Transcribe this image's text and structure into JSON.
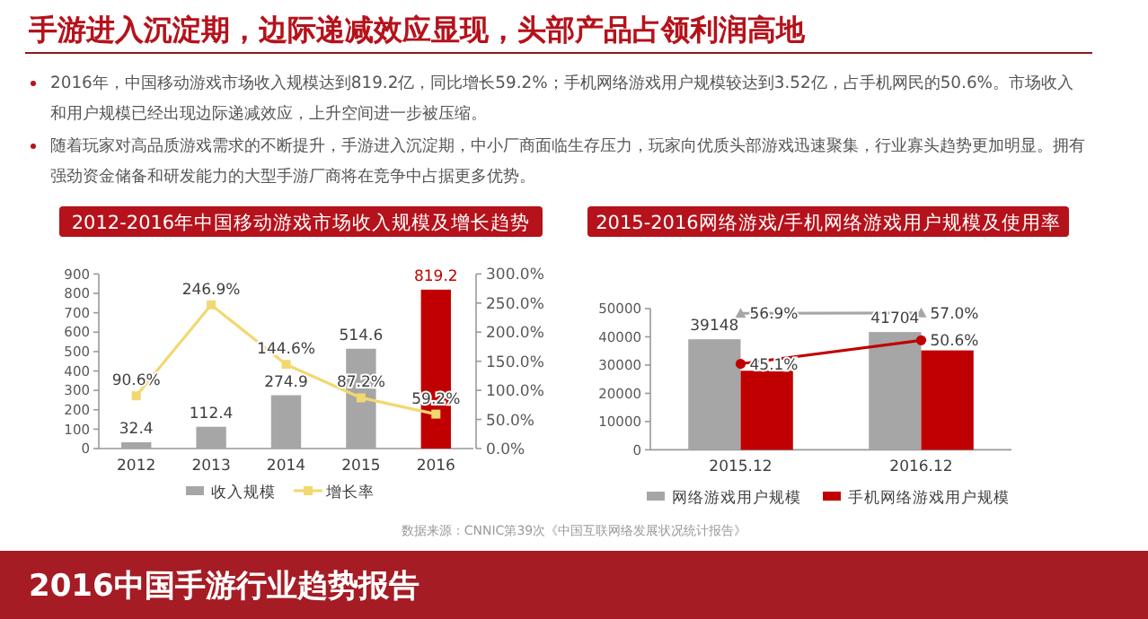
{
  "chart_data": [
    {
      "type": "other",
      "title": "手游进入沉淀期，边际递减效应显现，头部产品占领利润高地",
      "annotations": [
        "2016年，中国移动游戏市场收入规模达到819.2亿，同比增长59.2%；手机网络游戏用户规模较达到3.52亿，占手机网民的50.6%。市场收入和用户规模已经出现边际递减效应，上升空间进一步被压缩。",
        "随着玩家对高品质游戏需求的不断提升，手游进入沉淀期，中小厂商面临生存压力，玩家向优质头部游戏迅速聚集，行业寡头趋势更加明显。拥有强劲资金储备和研发能力的大型手游厂商将在竞争中占据更多优势。",
        "数据来源：CNNIC第39次《中国互联网络发展状况统计报告》",
        "2016中国手游行业趋势报告"
      ]
    },
    {
      "type": "bar",
      "title": "2012-2016年中国移动游戏市场收入规模及增长趋势",
      "categories": [
        "2012",
        "2013",
        "2014",
        "2015",
        "2016"
      ],
      "series": [
        {
          "name": "收入规模",
          "type": "bar",
          "color": "#a6a6a6",
          "colors": [
            "#a6a6a6",
            "#a6a6a6",
            "#a6a6a6",
            "#a6a6a6",
            "#c00000"
          ],
          "values": [
            32.4,
            112.4,
            274.9,
            514.6,
            819.2
          ],
          "value_labels": [
            "32.4",
            "112.4",
            "274.9",
            "514.6",
            "819.2"
          ]
        },
        {
          "name": "增长率",
          "type": "line",
          "axis": "y2",
          "color": "#f2d870",
          "marker": "square",
          "values": [
            90.6,
            246.9,
            144.6,
            87.2,
            59.2
          ],
          "value_labels": [
            "90.6%",
            "246.9%",
            "144.6%",
            "87.2%",
            "59.2%"
          ]
        }
      ],
      "ylim": [
        0,
        900
      ],
      "yticks": [
        0,
        100,
        200,
        300,
        400,
        500,
        600,
        700,
        800,
        900
      ],
      "y2lim": [
        0,
        300
      ],
      "y2ticks": [
        {
          "value": 0,
          "label": "0.0%"
        },
        {
          "value": 50,
          "label": "50.0%"
        },
        {
          "value": 100,
          "label": "100.0%"
        },
        {
          "value": 150,
          "label": "150.0%"
        },
        {
          "value": 200,
          "label": "200.0%"
        },
        {
          "value": 250,
          "label": "250.0%"
        },
        {
          "value": 300,
          "label": "300.0%"
        }
      ],
      "legend": "bottom"
    },
    {
      "type": "bar",
      "title": "2015-2016网络游戏/手机网络游戏用户规模及使用率",
      "categories": [
        "2015.12",
        "2016.12"
      ],
      "series": [
        {
          "name": "网络游戏用户规模",
          "type": "bar",
          "color": "#a6a6a6",
          "values": [
            39148,
            41704
          ],
          "value_labels": [
            "39148",
            "41704"
          ]
        },
        {
          "name": "手机网络游戏用户规模",
          "type": "bar",
          "color": "#c00000",
          "values": [
            28000,
            35200
          ]
        },
        {
          "type": "line",
          "axis": "y2",
          "color": "#a6a6a6",
          "marker": "triangle",
          "values": [
            56.9,
            57.0
          ],
          "value_labels": [
            "56.9%",
            "57.0%"
          ]
        },
        {
          "type": "line",
          "axis": "y2",
          "color": "#c00000",
          "marker": "circle",
          "values": [
            45.1,
            50.6
          ],
          "value_labels": [
            "45.1%",
            "50.6%"
          ]
        }
      ],
      "ylim": [
        0,
        50000
      ],
      "yticks": [
        0,
        10000,
        20000,
        30000,
        40000,
        50000
      ],
      "y2lim": [
        25,
        58
      ],
      "legend": "bottom"
    }
  ]
}
